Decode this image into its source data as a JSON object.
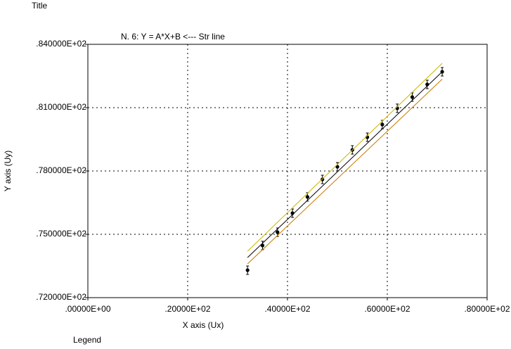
{
  "chart_data": {
    "type": "scatter",
    "title": "Title",
    "subtitle": "N.  6:   Y = A*X+B <--- Str  line",
    "x_label": "X axis (Ux)",
    "y_label": "Y axis (Uy)",
    "legend_title": "Legend",
    "xlim": [
      0,
      80
    ],
    "ylim": [
      72,
      84
    ],
    "xticks": [
      {
        "value": 0,
        "label": ".00000E+00"
      },
      {
        "value": 20,
        "label": ".20000E+02"
      },
      {
        "value": 40,
        "label": ".40000E+02"
      },
      {
        "value": 60,
        "label": ".60000E+02"
      },
      {
        "value": 80,
        "label": ".80000E+02"
      }
    ],
    "yticks": [
      {
        "value": 72,
        "label": ".720000E+02"
      },
      {
        "value": 75,
        "label": ".750000E+02"
      },
      {
        "value": 78,
        "label": ".780000E+02"
      },
      {
        "value": 81,
        "label": ".810000E+02"
      },
      {
        "value": 84,
        "label": ".840000E+02"
      }
    ],
    "grid": true,
    "series": [
      {
        "type": "scatter",
        "color": "#000000",
        "x": [
          32,
          35,
          38,
          41,
          44,
          47,
          50,
          53,
          56,
          59,
          62,
          65,
          68,
          71
        ],
        "values": [
          73.3,
          74.47,
          75.1,
          76.0,
          76.77,
          77.6,
          78.2,
          79.0,
          79.6,
          80.2,
          80.97,
          81.5,
          82.1,
          82.7
        ],
        "errors": [
          0.2,
          0.2,
          0.2,
          0.2,
          0.2,
          0.2,
          0.2,
          0.2,
          0.2,
          0.2,
          0.2,
          0.2,
          0.2,
          0.2
        ]
      },
      {
        "type": "line",
        "color": "#c8b400",
        "x": [
          32,
          71
        ],
        "values": [
          74.2,
          83.1
        ]
      },
      {
        "type": "line",
        "color": "#000000",
        "x": [
          32,
          71
        ],
        "values": [
          73.9,
          82.7
        ]
      },
      {
        "type": "line",
        "color": "#c87800",
        "x": [
          32,
          71
        ],
        "values": [
          73.6,
          82.35
        ]
      }
    ]
  }
}
